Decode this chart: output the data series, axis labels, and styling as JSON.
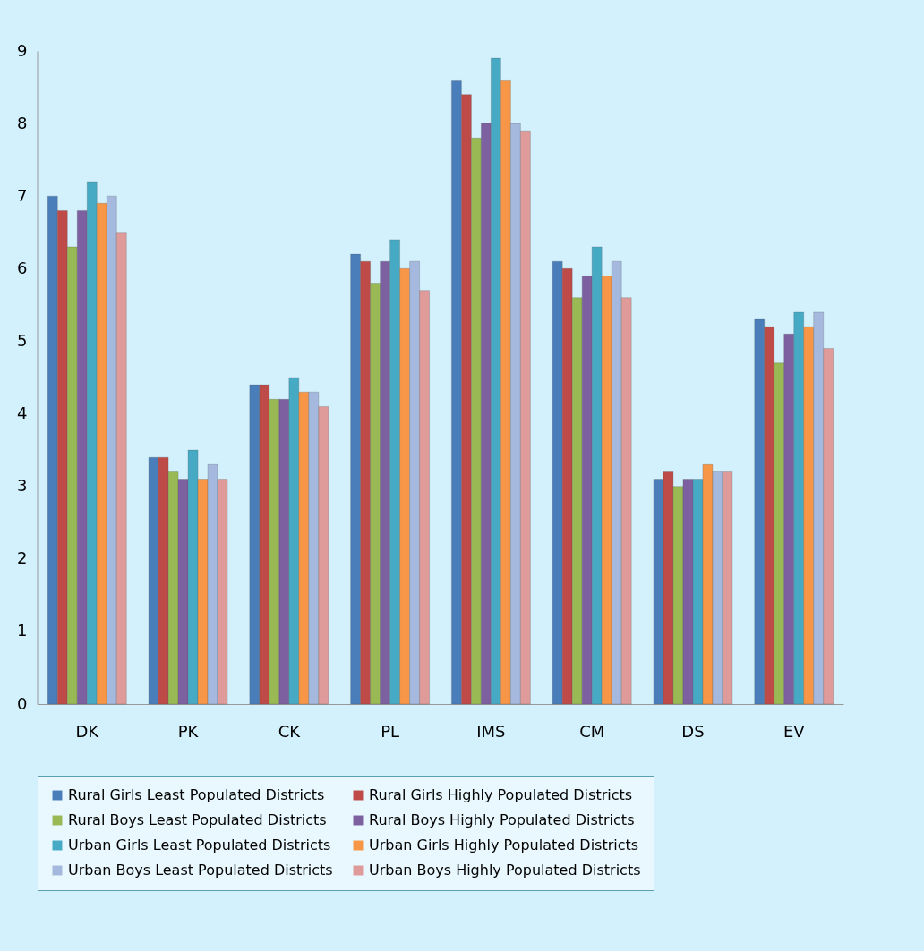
{
  "chart_data": {
    "type": "bar",
    "categories": [
      "DK",
      "PK",
      "CK",
      "PL",
      "IMS",
      "CM",
      "DS",
      "EV"
    ],
    "series": [
      {
        "name": "Rural Girls Least Populated Districts",
        "color": "#4a7ebb",
        "values": [
          7.0,
          3.4,
          4.4,
          6.2,
          8.6,
          6.1,
          3.1,
          5.3
        ]
      },
      {
        "name": "Rural Girls Highly Populated Districts",
        "color": "#be4b48",
        "values": [
          6.8,
          3.4,
          4.4,
          6.1,
          8.4,
          6.0,
          3.2,
          5.2
        ]
      },
      {
        "name": "Rural Boys Least Populated Districts",
        "color": "#98b954",
        "values": [
          6.3,
          3.2,
          4.2,
          5.8,
          7.8,
          5.6,
          3.0,
          4.7
        ]
      },
      {
        "name": "Rural Boys Highly Populated Districts",
        "color": "#7d60a0",
        "values": [
          6.8,
          3.1,
          4.2,
          6.1,
          8.0,
          5.9,
          3.1,
          5.1
        ]
      },
      {
        "name": "Urban Girls Least Populated Districts",
        "color": "#46aac5",
        "values": [
          7.2,
          3.5,
          4.5,
          6.4,
          8.9,
          6.3,
          3.1,
          5.4
        ]
      },
      {
        "name": "Urban Girls Highly Populated Districts",
        "color": "#f79646",
        "values": [
          6.9,
          3.1,
          4.3,
          6.0,
          8.6,
          5.9,
          3.3,
          5.2
        ]
      },
      {
        "name": "Urban Boys Least Populated Districts",
        "color": "#a5b8dd",
        "values": [
          7.0,
          3.3,
          4.3,
          6.1,
          8.0,
          6.1,
          3.2,
          5.4
        ]
      },
      {
        "name": "Urban Boys Highly Populated Districts",
        "color": "#de9b9a",
        "values": [
          6.5,
          3.1,
          4.1,
          5.7,
          7.9,
          5.6,
          3.2,
          4.9
        ]
      }
    ],
    "ylim": [
      0,
      9
    ],
    "yticks": [
      0,
      1,
      2,
      3,
      4,
      5,
      6,
      7,
      8,
      9
    ],
    "grid": false,
    "legend": "bottom"
  }
}
